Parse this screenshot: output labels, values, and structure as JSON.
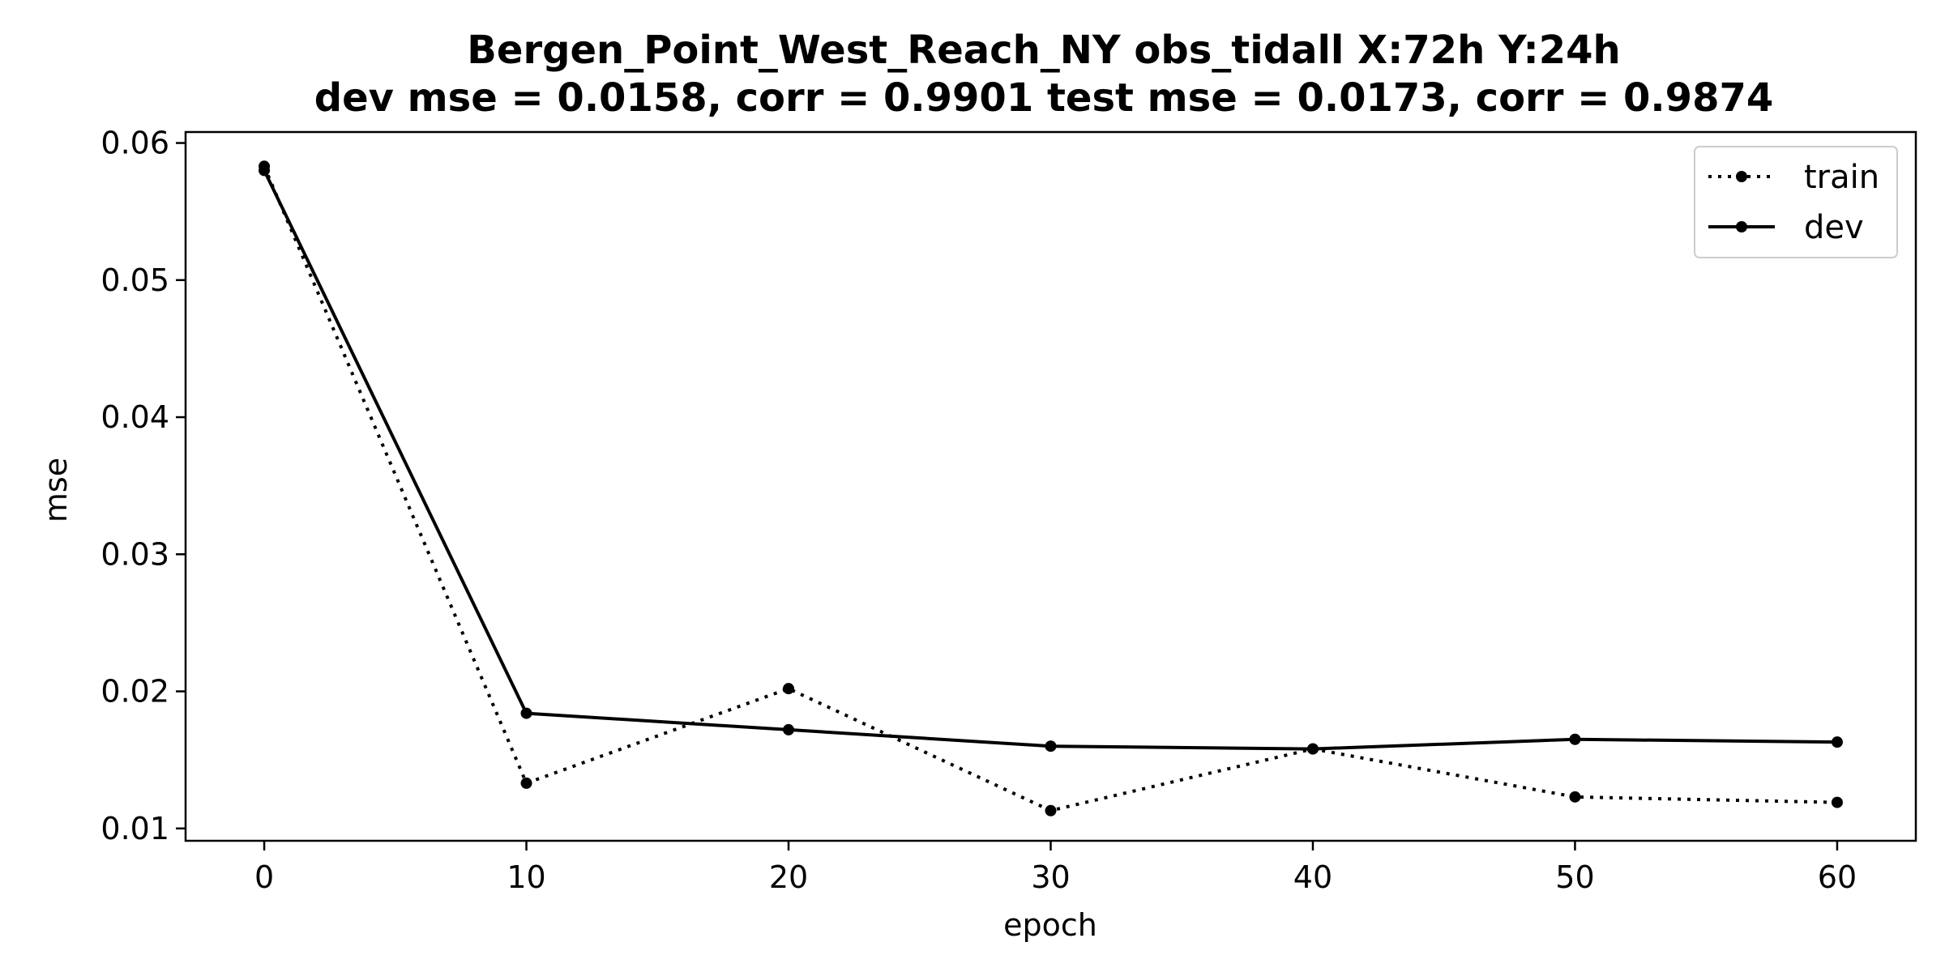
{
  "chart_data": {
    "type": "line",
    "title_line1": "Bergen_Point_West_Reach_NY   obs_tidall   X:72h   Y:24h",
    "title_line2": "dev mse = 0.0158, corr = 0.9901   test mse = 0.0173, corr = 0.9874",
    "xlabel": "epoch",
    "ylabel": "mse",
    "xlim": [
      -3,
      63
    ],
    "ylim": [
      0.0091,
      0.0608
    ],
    "xticks": [
      0,
      10,
      20,
      30,
      40,
      50,
      60
    ],
    "yticks": [
      0.01,
      0.02,
      0.03,
      0.04,
      0.05,
      0.06
    ],
    "ytick_labels": [
      "0.01",
      "0.02",
      "0.03",
      "0.04",
      "0.05",
      "0.06"
    ],
    "grid": false,
    "legend_position": "top-right",
    "x": [
      0,
      10,
      20,
      30,
      40,
      50,
      60
    ],
    "series": [
      {
        "name": "train",
        "style": "dotted",
        "color": "#000000",
        "values": [
          0.0583,
          0.0133,
          0.0202,
          0.0113,
          0.0158,
          0.0123,
          0.0119
        ]
      },
      {
        "name": "dev",
        "style": "solid",
        "color": "#000000",
        "values": [
          0.058,
          0.0184,
          0.0172,
          0.016,
          0.0158,
          0.0165,
          0.0163
        ]
      }
    ]
  }
}
